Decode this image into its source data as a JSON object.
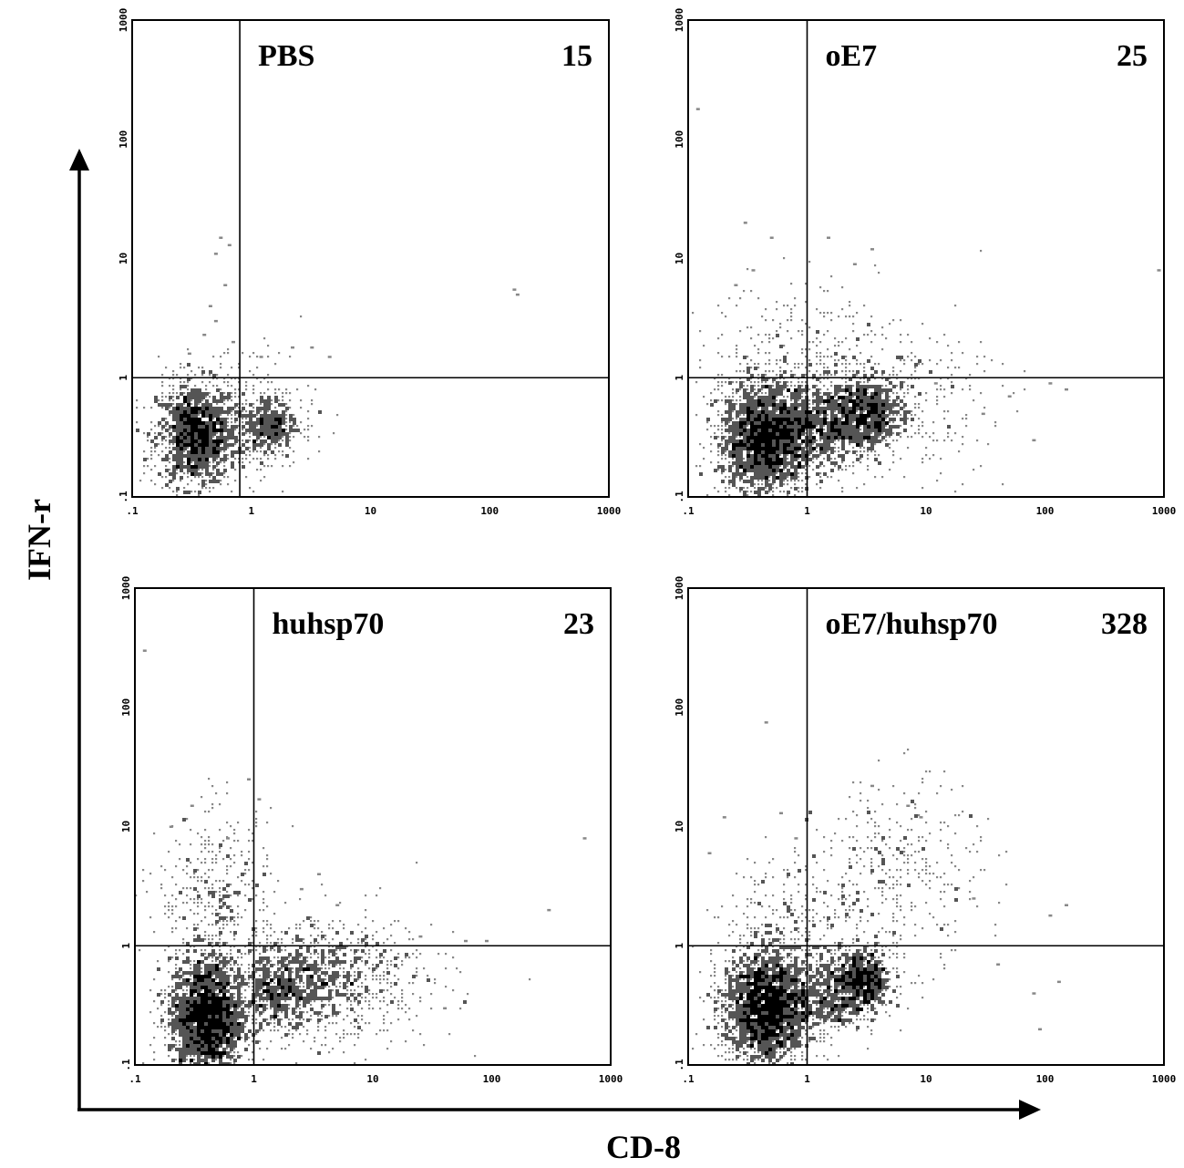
{
  "chart_data": {
    "type": "scatter",
    "subtype": "flow-cytometry-density-plot",
    "xlabel": "CD-8",
    "ylabel": "IFN-r",
    "xscale": "log",
    "yscale": "log",
    "xlim": [
      0.1,
      1000
    ],
    "ylim": [
      0.1,
      1000
    ],
    "xticks": [
      ".1",
      "1",
      "10",
      "100",
      "1000"
    ],
    "yticks": [
      ".1",
      "1",
      "10",
      "100",
      "1000"
    ],
    "colors": {
      "dense": "#000000",
      "medium": "#555555",
      "sparse": "#888888",
      "frame": "#000000"
    },
    "panels": [
      {
        "label": "PBS",
        "count": "15",
        "gate_x": 0.8,
        "gate_y": 1,
        "clusters": [
          {
            "x": 0.35,
            "y": 0.33,
            "n": 1500,
            "sx": 0.17,
            "sy": 0.22
          },
          {
            "x": 1.4,
            "y": 0.4,
            "n": 420,
            "sx": 0.12,
            "sy": 0.14
          },
          {
            "x": 0.9,
            "y": 0.5,
            "n": 180,
            "sx": 0.3,
            "sy": 0.3
          }
        ],
        "sparse": [
          {
            "x": 0.55,
            "y": 15
          },
          {
            "x": 0.65,
            "y": 13
          },
          {
            "x": 0.5,
            "y": 11
          },
          {
            "x": 0.6,
            "y": 6
          },
          {
            "x": 0.45,
            "y": 4
          },
          {
            "x": 0.5,
            "y": 3
          },
          {
            "x": 0.7,
            "y": 2
          },
          {
            "x": 0.4,
            "y": 2.3
          },
          {
            "x": 2.2,
            "y": 1.8
          },
          {
            "x": 3.2,
            "y": 1.8
          },
          {
            "x": 4.5,
            "y": 1.5
          },
          {
            "x": 160,
            "y": 5.5
          },
          {
            "x": 170,
            "y": 5.0
          },
          {
            "x": 1.2,
            "y": 1.5
          },
          {
            "x": 0.3,
            "y": 1.6
          }
        ]
      },
      {
        "label": "oE7",
        "count": "25",
        "gate_x": 1,
        "gate_y": 1,
        "clusters": [
          {
            "x": 0.45,
            "y": 0.3,
            "n": 2200,
            "sx": 0.2,
            "sy": 0.24
          },
          {
            "x": 1.5,
            "y": 0.4,
            "n": 700,
            "sx": 0.22,
            "sy": 0.18
          },
          {
            "x": 3.2,
            "y": 0.5,
            "n": 600,
            "sx": 0.15,
            "sy": 0.14
          },
          {
            "x": 4.0,
            "y": 0.6,
            "n": 500,
            "sx": 0.45,
            "sy": 0.3
          },
          {
            "x": 0.8,
            "y": 1.5,
            "n": 260,
            "sx": 0.35,
            "sy": 0.32
          }
        ],
        "sparse": [
          {
            "x": 0.12,
            "y": 180
          },
          {
            "x": 0.3,
            "y": 20
          },
          {
            "x": 0.5,
            "y": 15
          },
          {
            "x": 1.5,
            "y": 15
          },
          {
            "x": 3.5,
            "y": 12
          },
          {
            "x": 2.5,
            "y": 9
          },
          {
            "x": 0.35,
            "y": 8
          },
          {
            "x": 0.25,
            "y": 6
          },
          {
            "x": 12,
            "y": 0.9
          },
          {
            "x": 30,
            "y": 0.5
          },
          {
            "x": 50,
            "y": 0.7
          },
          {
            "x": 80,
            "y": 0.3
          },
          {
            "x": 110,
            "y": 0.9
          },
          {
            "x": 150,
            "y": 0.8
          },
          {
            "x": 900,
            "y": 8
          }
        ]
      },
      {
        "label": "huhsp70",
        "count": "23",
        "gate_x": 1,
        "gate_y": 1,
        "clusters": [
          {
            "x": 0.4,
            "y": 0.25,
            "n": 2200,
            "sx": 0.16,
            "sy": 0.26
          },
          {
            "x": 1.6,
            "y": 0.4,
            "n": 400,
            "sx": 0.15,
            "sy": 0.15
          },
          {
            "x": 3.0,
            "y": 0.55,
            "n": 700,
            "sx": 0.35,
            "sy": 0.22
          },
          {
            "x": 0.5,
            "y": 2.5,
            "n": 380,
            "sx": 0.25,
            "sy": 0.35
          },
          {
            "x": 8.0,
            "y": 0.5,
            "n": 300,
            "sx": 0.4,
            "sy": 0.3
          }
        ],
        "sparse": [
          {
            "x": 0.2,
            "y": 10
          },
          {
            "x": 0.3,
            "y": 15
          },
          {
            "x": 0.6,
            "y": 8
          },
          {
            "x": 0.9,
            "y": 25
          },
          {
            "x": 1.1,
            "y": 17
          },
          {
            "x": 2.5,
            "y": 3
          },
          {
            "x": 3.5,
            "y": 4
          },
          {
            "x": 5,
            "y": 2.2
          },
          {
            "x": 25,
            "y": 1.2
          },
          {
            "x": 60,
            "y": 1.1
          },
          {
            "x": 90,
            "y": 1.1
          },
          {
            "x": 40,
            "y": 0.3
          },
          {
            "x": 300,
            "y": 2
          },
          {
            "x": 600,
            "y": 8
          },
          {
            "x": 0.12,
            "y": 300
          }
        ]
      },
      {
        "label": "oE7/huhsp70",
        "count": "328",
        "gate_x": 1,
        "gate_y": 1,
        "clusters": [
          {
            "x": 0.45,
            "y": 0.3,
            "n": 2300,
            "sx": 0.18,
            "sy": 0.24
          },
          {
            "x": 1.5,
            "y": 0.4,
            "n": 500,
            "sx": 0.15,
            "sy": 0.18
          },
          {
            "x": 3.0,
            "y": 0.5,
            "n": 700,
            "sx": 0.12,
            "sy": 0.14
          },
          {
            "x": 6.0,
            "y": 4.0,
            "n": 350,
            "sx": 0.35,
            "sy": 0.38
          },
          {
            "x": 0.8,
            "y": 1.6,
            "n": 250,
            "sx": 0.3,
            "sy": 0.3
          }
        ],
        "sparse": [
          {
            "x": 0.45,
            "y": 75
          },
          {
            "x": 3.5,
            "y": 22
          },
          {
            "x": 0.2,
            "y": 12
          },
          {
            "x": 0.6,
            "y": 13
          },
          {
            "x": 0.8,
            "y": 8
          },
          {
            "x": 7,
            "y": 15
          },
          {
            "x": 9,
            "y": 12
          },
          {
            "x": 40,
            "y": 0.7
          },
          {
            "x": 80,
            "y": 0.4
          },
          {
            "x": 110,
            "y": 1.8
          },
          {
            "x": 150,
            "y": 2.2
          },
          {
            "x": 90,
            "y": 0.2
          },
          {
            "x": 130,
            "y": 0.5
          },
          {
            "x": 25,
            "y": 2.5
          },
          {
            "x": 0.15,
            "y": 6
          }
        ]
      }
    ]
  }
}
